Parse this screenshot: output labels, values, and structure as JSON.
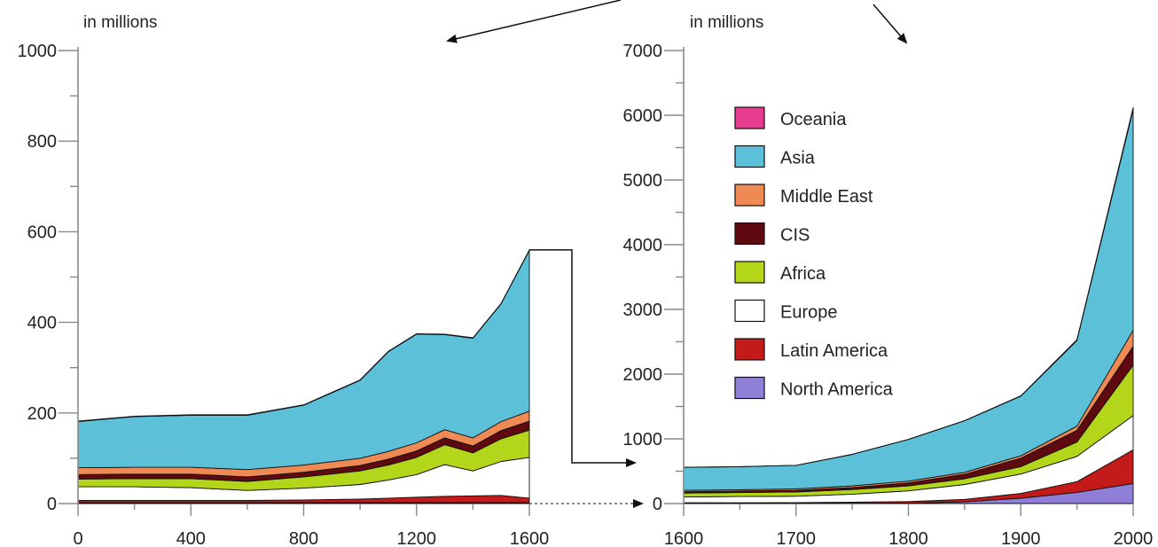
{
  "chart_data": [
    {
      "type": "area",
      "stacked": true,
      "unit_label": "in millions",
      "x": [
        0,
        200,
        400,
        600,
        800,
        1000,
        1100,
        1200,
        1300,
        1400,
        1500,
        1600
      ],
      "xticks": [
        0,
        400,
        800,
        1200,
        1600
      ],
      "xlim": [
        0,
        1600
      ],
      "yticks": [
        0,
        200,
        400,
        600,
        800,
        1000
      ],
      "ylim": [
        0,
        1000
      ],
      "series": [
        {
          "name": "North America",
          "color": "#8f7fd6",
          "values": [
            2,
            2,
            2,
            2,
            2,
            2,
            2,
            2,
            2,
            2,
            2,
            2
          ]
        },
        {
          "name": "Latin America",
          "color": "#c41a1a",
          "values": [
            5,
            5,
            5,
            5,
            6,
            8,
            10,
            12,
            14,
            15,
            16,
            10
          ]
        },
        {
          "name": "Europe",
          "color": "#ffffff",
          "values": [
            30,
            30,
            28,
            22,
            26,
            32,
            40,
            50,
            70,
            55,
            75,
            90
          ]
        },
        {
          "name": "Africa",
          "color": "#b3d61a",
          "values": [
            17,
            18,
            20,
            20,
            25,
            30,
            33,
            38,
            44,
            40,
            50,
            60
          ]
        },
        {
          "name": "CIS",
          "color": "#5e0a10",
          "values": [
            10,
            10,
            10,
            10,
            10,
            12,
            13,
            14,
            15,
            15,
            18,
            20
          ]
        },
        {
          "name": "Middle East",
          "color": "#f08a55",
          "values": [
            15,
            15,
            15,
            16,
            16,
            16,
            17,
            18,
            18,
            18,
            20,
            22
          ]
        },
        {
          "name": "Asia",
          "color": "#5bc0d8",
          "values": [
            102,
            112,
            115,
            120,
            132,
            172,
            220,
            240,
            210,
            220,
            260,
            355
          ]
        },
        {
          "name": "Oceania",
          "color": "#e63c8f",
          "values": [
            1,
            1,
            1,
            1,
            1,
            1,
            1,
            1,
            1,
            1,
            1,
            1
          ]
        }
      ]
    },
    {
      "type": "area",
      "stacked": true,
      "unit_label": "in millions",
      "x": [
        1600,
        1650,
        1700,
        1750,
        1800,
        1850,
        1900,
        1950,
        2000
      ],
      "xticks": [
        1600,
        1700,
        1800,
        1900,
        2000
      ],
      "xlim": [
        1600,
        2000
      ],
      "yticks": [
        0,
        1000,
        2000,
        3000,
        4000,
        5000,
        6000,
        7000
      ],
      "ylim": [
        0,
        7000
      ],
      "series": [
        {
          "name": "North America",
          "color": "#8f7fd6",
          "values": [
            2,
            2,
            2,
            3,
            7,
            26,
            82,
            172,
            310
          ]
        },
        {
          "name": "Latin America",
          "color": "#c41a1a",
          "values": [
            10,
            11,
            12,
            17,
            24,
            38,
            74,
            167,
            520
          ]
        },
        {
          "name": "Europe",
          "color": "#ffffff",
          "values": [
            90,
            95,
            100,
            125,
            165,
            230,
            300,
            390,
            530
          ]
        },
        {
          "name": "Africa",
          "color": "#b3d61a",
          "values": [
            60,
            62,
            65,
            72,
            78,
            88,
            115,
            222,
            780
          ]
        },
        {
          "name": "CIS",
          "color": "#5e0a10",
          "values": [
            20,
            22,
            25,
            30,
            45,
            70,
            130,
            180,
            290
          ]
        },
        {
          "name": "Middle East",
          "color": "#f08a55",
          "values": [
            22,
            22,
            23,
            25,
            27,
            30,
            38,
            65,
            250
          ]
        },
        {
          "name": "Asia",
          "color": "#5bc0d8",
          "values": [
            355,
            356,
            363,
            488,
            644,
            798,
            921,
            1324,
            3410
          ]
        },
        {
          "name": "Oceania",
          "color": "#e63c8f",
          "values": [
            1,
            1,
            1,
            2,
            2,
            2,
            6,
            13,
            30
          ]
        }
      ]
    }
  ],
  "legend": {
    "placement": "inside-right-chart-top-left",
    "items": [
      {
        "label": "Oceania",
        "color": "#e63c8f"
      },
      {
        "label": "Asia",
        "color": "#5bc0d8"
      },
      {
        "label": "Middle East",
        "color": "#f08a55"
      },
      {
        "label": "CIS",
        "color": "#5e0a10"
      },
      {
        "label": "Africa",
        "color": "#b3d61a"
      },
      {
        "label": "Europe",
        "color": "#ffffff"
      },
      {
        "label": "Latin America",
        "color": "#c41a1a"
      },
      {
        "label": "North America",
        "color": "#8f7fd6"
      }
    ]
  }
}
